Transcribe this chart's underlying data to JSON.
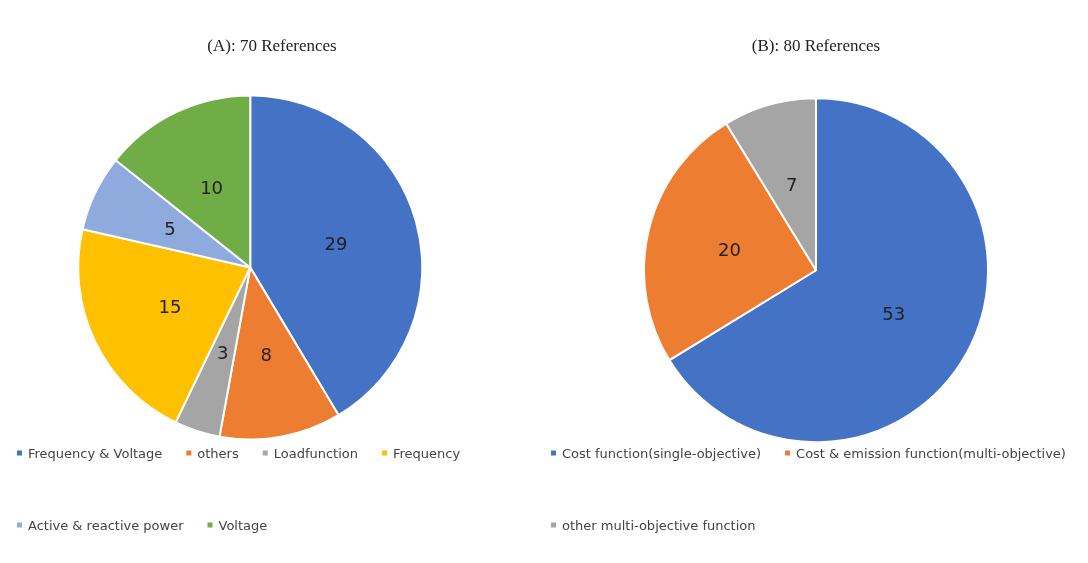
{
  "chart_data": [
    {
      "type": "pie",
      "title": "(A): 70 References",
      "categories": [
        "Frequency & Voltage",
        "others",
        "Loadfunction",
        "Frequency",
        "Active & reactive power",
        "Voltage"
      ],
      "values": [
        29,
        8,
        3,
        15,
        5,
        10
      ],
      "colors": [
        "#4472c4",
        "#ed7d31",
        "#a5a5a5",
        "#ffc000",
        "#8faadc",
        "#70ad47"
      ],
      "data_labels": true,
      "legend": "bottom"
    },
    {
      "type": "pie",
      "title": "(B): 80 References",
      "categories": [
        "Cost function(single-objective)",
        "Cost & emission function(multi-objective)",
        "other multi-objective function"
      ],
      "values": [
        53,
        20,
        7
      ],
      "colors": [
        "#4472c4",
        "#ed7d31",
        "#a5a5a5"
      ],
      "data_labels": true,
      "legend": "bottom"
    }
  ]
}
